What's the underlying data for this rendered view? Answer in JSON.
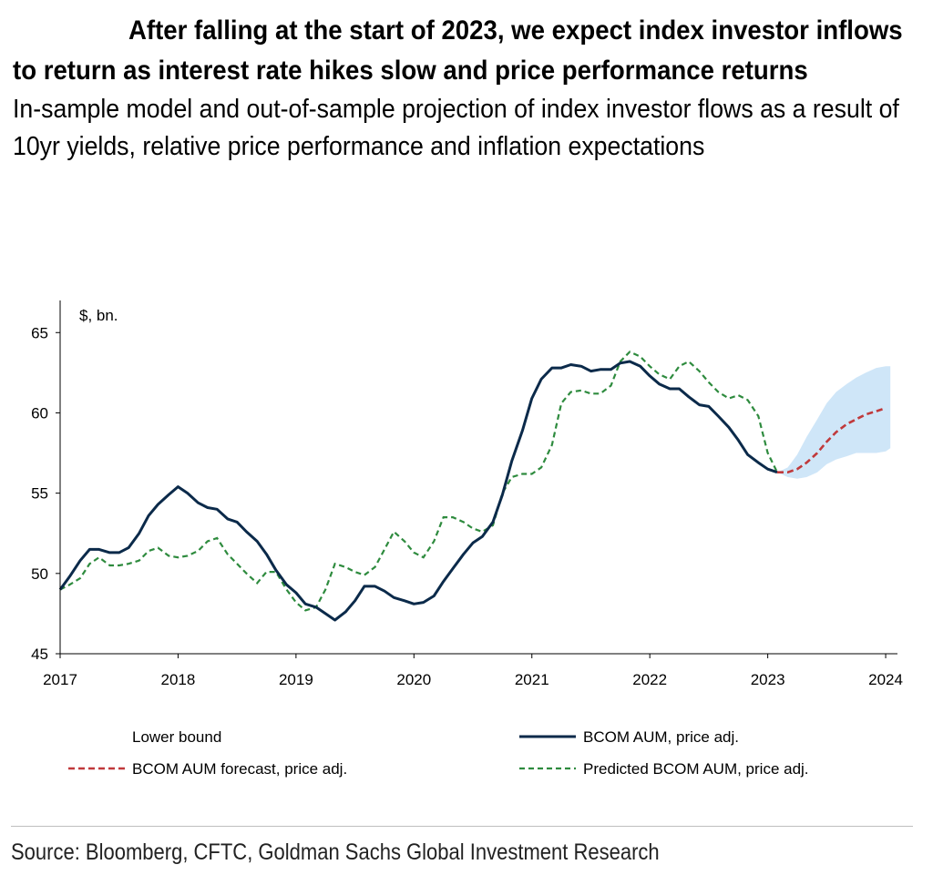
{
  "title": "After falling at the start of 2023, we expect index investor inflows to return as interest rate hikes slow and price performance returns",
  "subtitle": "In-sample model and out-of-sample projection of index investor flows as a result of 10yr yields, relative price performance and inflation expectations",
  "source": "Source: Bloomberg, CFTC, Goldman Sachs Global Investment Research",
  "colors": {
    "actual": "#0b2a4a",
    "predicted": "#2e8b3e",
    "forecast": "#c0393b",
    "band": "#cfe6f8"
  },
  "chart_data": {
    "type": "line",
    "unit_label": "$, bn.",
    "ylim": [
      45,
      67
    ],
    "yticks": [
      45,
      50,
      55,
      60,
      65
    ],
    "xlim": [
      2017,
      2024.1
    ],
    "xticks": [
      2017,
      2018,
      2019,
      2020,
      2021,
      2022,
      2023,
      2024
    ],
    "grid": false,
    "legend": [
      {
        "label": "Lower bound",
        "key": "lower"
      },
      {
        "label": "BCOM AUM, price adj.",
        "key": "actual"
      },
      {
        "label": "BCOM AUM forecast, price adj.",
        "key": "forecast"
      },
      {
        "label": "Predicted BCOM AUM, price adj.",
        "key": "predicted"
      }
    ],
    "series": [
      {
        "name": "BCOM AUM, price adj.",
        "key": "actual",
        "style": "solid",
        "x": [
          2017.0,
          2017.08,
          2017.17,
          2017.25,
          2017.33,
          2017.42,
          2017.5,
          2017.58,
          2017.67,
          2017.75,
          2017.83,
          2017.92,
          2018.0,
          2018.08,
          2018.17,
          2018.25,
          2018.33,
          2018.42,
          2018.5,
          2018.58,
          2018.67,
          2018.75,
          2018.83,
          2018.92,
          2019.0,
          2019.08,
          2019.17,
          2019.25,
          2019.33,
          2019.42,
          2019.5,
          2019.58,
          2019.67,
          2019.75,
          2019.83,
          2019.92,
          2020.0,
          2020.08,
          2020.17,
          2020.25,
          2020.33,
          2020.42,
          2020.5,
          2020.58,
          2020.67,
          2020.75,
          2020.83,
          2020.92,
          2021.0,
          2021.08,
          2021.17,
          2021.25,
          2021.33,
          2021.42,
          2021.5,
          2021.58,
          2021.67,
          2021.75,
          2021.83,
          2021.92,
          2022.0,
          2022.08,
          2022.17,
          2022.25,
          2022.33,
          2022.42,
          2022.5,
          2022.58,
          2022.67,
          2022.75,
          2022.83,
          2022.92,
          2023.0,
          2023.08
        ],
        "values": [
          49.0,
          49.8,
          50.8,
          51.5,
          51.5,
          51.3,
          51.3,
          51.6,
          52.5,
          53.6,
          54.3,
          54.9,
          55.4,
          55.0,
          54.4,
          54.1,
          54.0,
          53.4,
          53.2,
          52.6,
          52.0,
          51.2,
          50.2,
          49.3,
          48.8,
          48.1,
          47.9,
          47.5,
          47.1,
          47.6,
          48.3,
          49.2,
          49.2,
          48.9,
          48.5,
          48.3,
          48.1,
          48.2,
          48.6,
          49.5,
          50.3,
          51.2,
          51.9,
          52.3,
          53.2,
          54.9,
          57.0,
          58.9,
          60.9,
          62.1,
          62.8,
          62.8,
          63.0,
          62.9,
          62.6,
          62.7,
          62.7,
          63.1,
          63.2,
          62.9,
          62.3,
          61.8,
          61.5,
          61.5,
          61.0,
          60.5,
          60.4,
          59.8,
          59.1,
          58.3,
          57.4,
          56.9,
          56.5,
          56.3
        ]
      },
      {
        "name": "Predicted BCOM AUM, price adj.",
        "key": "predicted",
        "style": "dashed",
        "x": [
          2017.0,
          2017.08,
          2017.17,
          2017.25,
          2017.33,
          2017.42,
          2017.5,
          2017.58,
          2017.67,
          2017.75,
          2017.83,
          2017.92,
          2018.0,
          2018.08,
          2018.17,
          2018.25,
          2018.33,
          2018.42,
          2018.5,
          2018.58,
          2018.67,
          2018.75,
          2018.83,
          2018.92,
          2019.0,
          2019.08,
          2019.17,
          2019.25,
          2019.33,
          2019.42,
          2019.5,
          2019.58,
          2019.67,
          2019.75,
          2019.83,
          2019.92,
          2020.0,
          2020.08,
          2020.17,
          2020.25,
          2020.33,
          2020.42,
          2020.5,
          2020.58,
          2020.67,
          2020.75,
          2020.83,
          2020.92,
          2021.0,
          2021.08,
          2021.17,
          2021.25,
          2021.33,
          2021.42,
          2021.5,
          2021.58,
          2021.67,
          2021.75,
          2021.83,
          2021.92,
          2022.0,
          2022.08,
          2022.17,
          2022.25,
          2022.33,
          2022.42,
          2022.5,
          2022.58,
          2022.67,
          2022.75,
          2022.83,
          2022.92,
          2023.0,
          2023.08
        ],
        "values": [
          49.0,
          49.3,
          49.7,
          50.6,
          51.0,
          50.5,
          50.5,
          50.6,
          50.8,
          51.4,
          51.6,
          51.1,
          51.0,
          51.1,
          51.4,
          52.0,
          52.2,
          51.2,
          50.6,
          50.0,
          49.4,
          50.1,
          50.1,
          49.0,
          48.2,
          47.7,
          47.9,
          49.0,
          50.6,
          50.4,
          50.1,
          49.9,
          50.4,
          51.5,
          52.6,
          52.0,
          51.3,
          51.0,
          52.0,
          53.5,
          53.5,
          53.2,
          52.8,
          52.6,
          53.0,
          55.0,
          56.0,
          56.2,
          56.2,
          56.6,
          58.0,
          60.6,
          61.3,
          61.4,
          61.2,
          61.2,
          61.7,
          63.2,
          63.8,
          63.5,
          62.9,
          62.4,
          62.1,
          62.9,
          63.2,
          62.6,
          61.9,
          61.3,
          60.9,
          61.1,
          60.8,
          59.8,
          57.5,
          56.3
        ]
      },
      {
        "name": "BCOM AUM forecast, price adj.",
        "key": "forecast",
        "style": "dashed",
        "x": [
          2023.08,
          2023.17,
          2023.25,
          2023.33,
          2023.42,
          2023.5,
          2023.58,
          2023.67,
          2023.75,
          2023.83,
          2023.92,
          2024.0
        ],
        "values": [
          56.3,
          56.3,
          56.5,
          56.9,
          57.5,
          58.2,
          58.8,
          59.3,
          59.6,
          59.9,
          60.1,
          60.3
        ]
      },
      {
        "name": "Lower bound",
        "key": "lower",
        "style": "band-lower",
        "x": [
          2023.08,
          2023.17,
          2023.25,
          2023.33,
          2023.42,
          2023.5,
          2023.58,
          2023.67,
          2023.75,
          2023.83,
          2023.92,
          2024.0,
          2024.04
        ],
        "values": [
          56.3,
          56.0,
          55.9,
          56.0,
          56.3,
          56.8,
          57.1,
          57.3,
          57.5,
          57.5,
          57.5,
          57.6,
          57.8
        ]
      },
      {
        "name": "",
        "key": "upper",
        "style": "band-upper",
        "x": [
          2023.08,
          2023.17,
          2023.25,
          2023.33,
          2023.42,
          2023.5,
          2023.58,
          2023.67,
          2023.75,
          2023.83,
          2023.92,
          2024.0,
          2024.04
        ],
        "values": [
          56.3,
          56.6,
          57.4,
          58.5,
          59.6,
          60.6,
          61.3,
          61.8,
          62.2,
          62.5,
          62.8,
          62.9,
          62.9
        ]
      }
    ]
  }
}
